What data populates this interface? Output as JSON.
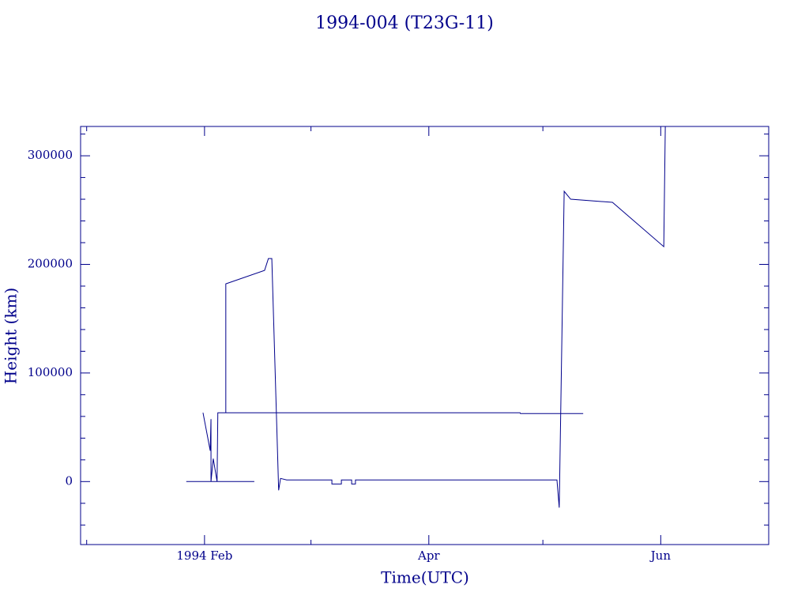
{
  "chart_data": {
    "type": "line",
    "title": "1994-004 (T23G-11)",
    "xlabel": "Time(UTC)",
    "ylabel": "Height (km)",
    "color": "#00008b",
    "xlim": [
      -32.6,
      148.4
    ],
    "xticks": [
      {
        "value": 0,
        "label": "1994 Feb"
      },
      {
        "value": 59,
        "label": "Apr"
      },
      {
        "value": 120,
        "label": "Jun"
      }
    ],
    "xminorticks": [
      -31,
      28,
      89
    ],
    "ylim": [
      -58000,
      327000
    ],
    "yticks": [
      0,
      100000,
      200000,
      300000
    ],
    "yminorticks": [
      -40000,
      -20000,
      20000,
      40000,
      60000,
      80000,
      120000,
      140000,
      160000,
      180000,
      220000,
      240000,
      260000,
      280000,
      320000
    ],
    "series": [
      {
        "name": "1994-004 (T23G-11)",
        "color": "#00008b",
        "x": [
          -4.8,
          13.1,
          null,
          -0.4,
          1.5,
          1.7,
          1.7,
          2.3,
          3.3,
          3.5,
          5.6,
          5.6,
          15.8,
          16.8,
          17.7,
          19.5,
          20.0,
          21.6,
          33.5,
          33.5,
          36.0,
          36.0,
          38.7,
          38.7,
          39.7,
          39.7,
          92.7,
          93.3,
          94.6,
          96.3,
          107.3,
          120.8,
          121.2,
          null,
          3.5,
          83.0,
          83.1,
          99.6
        ],
        "values": [
          0,
          0,
          null,
          63400,
          28400,
          57500,
          0,
          21100,
          0,
          63400,
          63400,
          182100,
          194500,
          205400,
          205400,
          -8000,
          2900,
          1500,
          1500,
          -2200,
          -2200,
          1500,
          1500,
          -2200,
          -2200,
          1500,
          1500,
          -24000,
          267300,
          260000,
          257100,
          216300,
          327000,
          null,
          63400,
          63400,
          62600,
          62600
        ]
      }
    ]
  }
}
